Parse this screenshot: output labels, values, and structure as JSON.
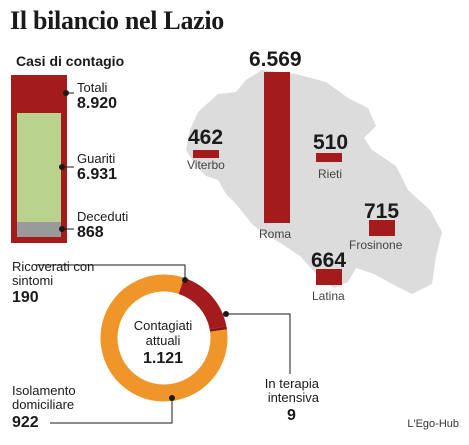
{
  "title": "Il bilancio nel Lazio",
  "subtitle": "Casi di contagio",
  "source": "L'Ego-Hub",
  "colors": {
    "dark_red": "#a31b1b",
    "green": "#b9d38f",
    "gray": "#9a9a9a",
    "orange": "#f0952a",
    "map": "#dcdcdc"
  },
  "casi": {
    "totale_label": "Totali",
    "totale_value": "8.920",
    "guariti_label": "Guariti",
    "guariti_value": "6.931",
    "deceduti_label": "Deceduti",
    "deceduti_value": "868"
  },
  "donut": {
    "center_label": "Contagiati attuali",
    "center_value": "1.121",
    "segments": [
      {
        "label": "Ricoverati con sintomi",
        "value": "190"
      },
      {
        "label": "In terapia intensiva",
        "value": "9"
      },
      {
        "label": "Isolamento domiciliare",
        "value": "922"
      }
    ]
  },
  "map": {
    "provinces": [
      {
        "name": "Viterbo",
        "value": "462"
      },
      {
        "name": "Rieti",
        "value": "510"
      },
      {
        "name": "Roma",
        "value": "6.569"
      },
      {
        "name": "Frosinone",
        "value": "715"
      },
      {
        "name": "Latina",
        "value": "664"
      }
    ]
  },
  "chart_data": [
    {
      "type": "bar",
      "title": "Casi di contagio",
      "categories": [
        "Guariti",
        "Deceduti"
      ],
      "values": [
        6931,
        868
      ],
      "total": {
        "label": "Totali",
        "value": 8920
      }
    },
    {
      "type": "pie",
      "title": "Contagiati attuali",
      "total": 1121,
      "categories": [
        "Ricoverati con sintomi",
        "In terapia intensiva",
        "Isolamento domiciliare"
      ],
      "values": [
        190,
        9,
        922
      ]
    },
    {
      "type": "bar",
      "categories": [
        "Viterbo",
        "Rieti",
        "Roma",
        "Frosinone",
        "Latina"
      ],
      "values": [
        462,
        510,
        6569,
        715,
        664
      ]
    }
  ]
}
